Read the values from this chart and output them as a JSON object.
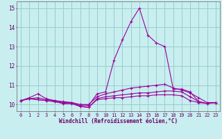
{
  "xlabel": "Windchill (Refroidissement éolien,°C)",
  "background_color": "#c8eef0",
  "grid_color": "#99cccc",
  "line_color": "#990099",
  "x_ticks": [
    0,
    1,
    2,
    3,
    4,
    5,
    6,
    7,
    8,
    9,
    10,
    11,
    12,
    13,
    14,
    15,
    16,
    17,
    18,
    19,
    20,
    21,
    22,
    23
  ],
  "y_ticks": [
    10,
    11,
    12,
    13,
    14,
    15
  ],
  "ylim": [
    9.65,
    15.35
  ],
  "xlim": [
    -0.5,
    23.5
  ],
  "series": [
    [
      10.2,
      10.3,
      10.25,
      10.2,
      10.15,
      10.05,
      10.05,
      9.9,
      9.85,
      10.25,
      10.3,
      10.35,
      10.35,
      10.4,
      10.45,
      10.45,
      10.5,
      10.5,
      10.5,
      10.45,
      10.2,
      10.1,
      10.05,
      10.1
    ],
    [
      10.2,
      10.3,
      10.25,
      10.2,
      10.15,
      10.05,
      10.05,
      9.9,
      9.85,
      10.3,
      10.4,
      10.45,
      10.5,
      10.55,
      10.6,
      10.6,
      10.65,
      10.7,
      10.7,
      10.65,
      10.4,
      10.15,
      10.05,
      10.1
    ],
    [
      10.2,
      10.3,
      10.35,
      10.25,
      10.2,
      10.1,
      10.1,
      10.0,
      10.0,
      10.4,
      10.55,
      10.65,
      10.75,
      10.85,
      10.9,
      10.95,
      11.0,
      11.05,
      10.85,
      10.75,
      10.6,
      10.35,
      10.1,
      10.1
    ],
    [
      10.2,
      10.35,
      10.55,
      10.3,
      10.2,
      10.15,
      10.1,
      9.95,
      9.95,
      10.55,
      10.65,
      12.3,
      13.35,
      14.3,
      15.0,
      13.6,
      13.2,
      13.0,
      10.8,
      10.8,
      10.65,
      10.15,
      10.05,
      10.1
    ]
  ]
}
